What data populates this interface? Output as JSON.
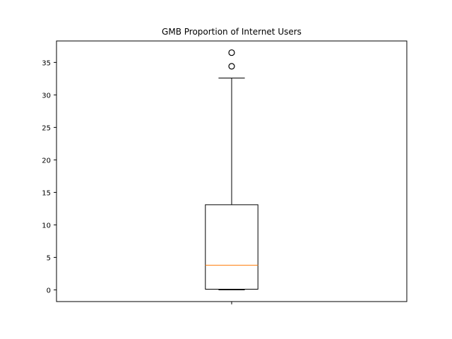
{
  "chart_data": {
    "type": "boxplot",
    "title": "GMB Proportion of Internet Users",
    "xlabel": "",
    "ylabel": "",
    "x_tick_labels": [
      ""
    ],
    "ylim": [
      -1.8,
      38.3
    ],
    "y_ticks": [
      0,
      5,
      10,
      15,
      20,
      25,
      30,
      35
    ],
    "grid": false,
    "boxes": [
      {
        "whisker_low": 0.0,
        "q1": 0.1,
        "median": 3.8,
        "q3": 13.1,
        "whisker_high": 32.6,
        "outliers": [
          34.4,
          36.5
        ]
      }
    ],
    "colors": {
      "box": "#000000",
      "median": "#ff7f0e",
      "outlier_edge": "#000000"
    }
  }
}
